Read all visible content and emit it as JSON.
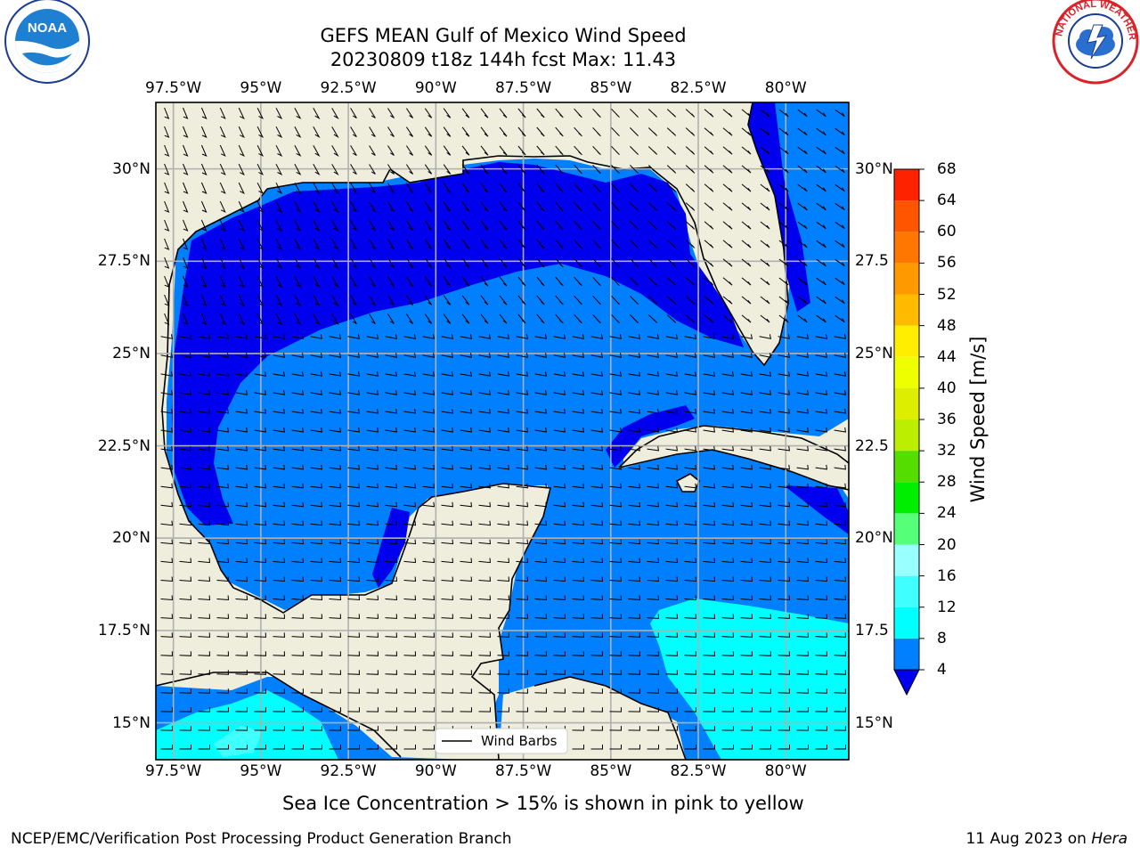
{
  "header": {
    "title_line1": "GEFS MEAN Gulf of Mexico Wind Speed",
    "title_line2": "20230809 t18z 144h fcst   Max: 11.43"
  },
  "map": {
    "lon_labels": [
      "97.5°W",
      "95°W",
      "92.5°W",
      "90°W",
      "87.5°W",
      "85°W",
      "82.5°W",
      "80°W"
    ],
    "lon_values": [
      -97.5,
      -95,
      -92.5,
      -90,
      -87.5,
      -85,
      -82.5,
      -80
    ],
    "lat_labels": [
      "30°N",
      "27.5°N",
      "25°N",
      "22.5°N",
      "20°N",
      "17.5°N",
      "15°N"
    ],
    "lat_values": [
      30,
      27.5,
      25,
      22.5,
      20,
      17.5,
      15
    ],
    "right_lat_labels": [
      "30°N",
      "27.5",
      "25°N",
      "22.5",
      "20°N",
      "17.5",
      "15°N"
    ],
    "extent": {
      "lon_min": -98,
      "lon_max": -78.2,
      "lat_min": 14,
      "lat_max": 31.8
    },
    "legend_label": "Wind Barbs",
    "land_color": "#efeddc",
    "grid_color": "#b0b0b0"
  },
  "colorbar": {
    "title": "Wind Speed [m/s]",
    "ticks": [
      "68",
      "64",
      "60",
      "56",
      "52",
      "48",
      "44",
      "40",
      "36",
      "32",
      "28",
      "24",
      "20",
      "16",
      "12",
      "8",
      "4"
    ],
    "bins": [
      {
        "min": 4,
        "max": 8,
        "color": "#0080ff"
      },
      {
        "min": 8,
        "max": 12,
        "color": "#00ffff"
      },
      {
        "min": 12,
        "max": 16,
        "color": "#40ffff"
      },
      {
        "min": 16,
        "max": 20,
        "color": "#99ffff"
      },
      {
        "min": 20,
        "max": 24,
        "color": "#55ff77"
      },
      {
        "min": 24,
        "max": 28,
        "color": "#00ee00"
      },
      {
        "min": 28,
        "max": 32,
        "color": "#55dd00"
      },
      {
        "min": 32,
        "max": 36,
        "color": "#bbee00"
      },
      {
        "min": 36,
        "max": 40,
        "color": "#ddee00"
      },
      {
        "min": 40,
        "max": 44,
        "color": "#eeff00"
      },
      {
        "min": 44,
        "max": 48,
        "color": "#ffee00"
      },
      {
        "min": 48,
        "max": 52,
        "color": "#ffbb00"
      },
      {
        "min": 52,
        "max": 56,
        "color": "#ff9900"
      },
      {
        "min": 56,
        "max": 60,
        "color": "#ff7700"
      },
      {
        "min": 60,
        "max": 64,
        "color": "#ff5500"
      },
      {
        "min": 64,
        "max": 68,
        "color": "#ff2200"
      }
    ],
    "under_color": "#0000ee"
  },
  "note": "Sea Ice Concentration > 15% is shown in pink to yellow",
  "footer": {
    "left": "NCEP/EMC/Verification Post Processing Product Generation Branch",
    "date": "11 Aug 2023 on ",
    "machine": "Hera"
  },
  "logos": {
    "noaa": "NOAA",
    "nws_ring": "NATIONAL WEATHER SERVICE"
  }
}
